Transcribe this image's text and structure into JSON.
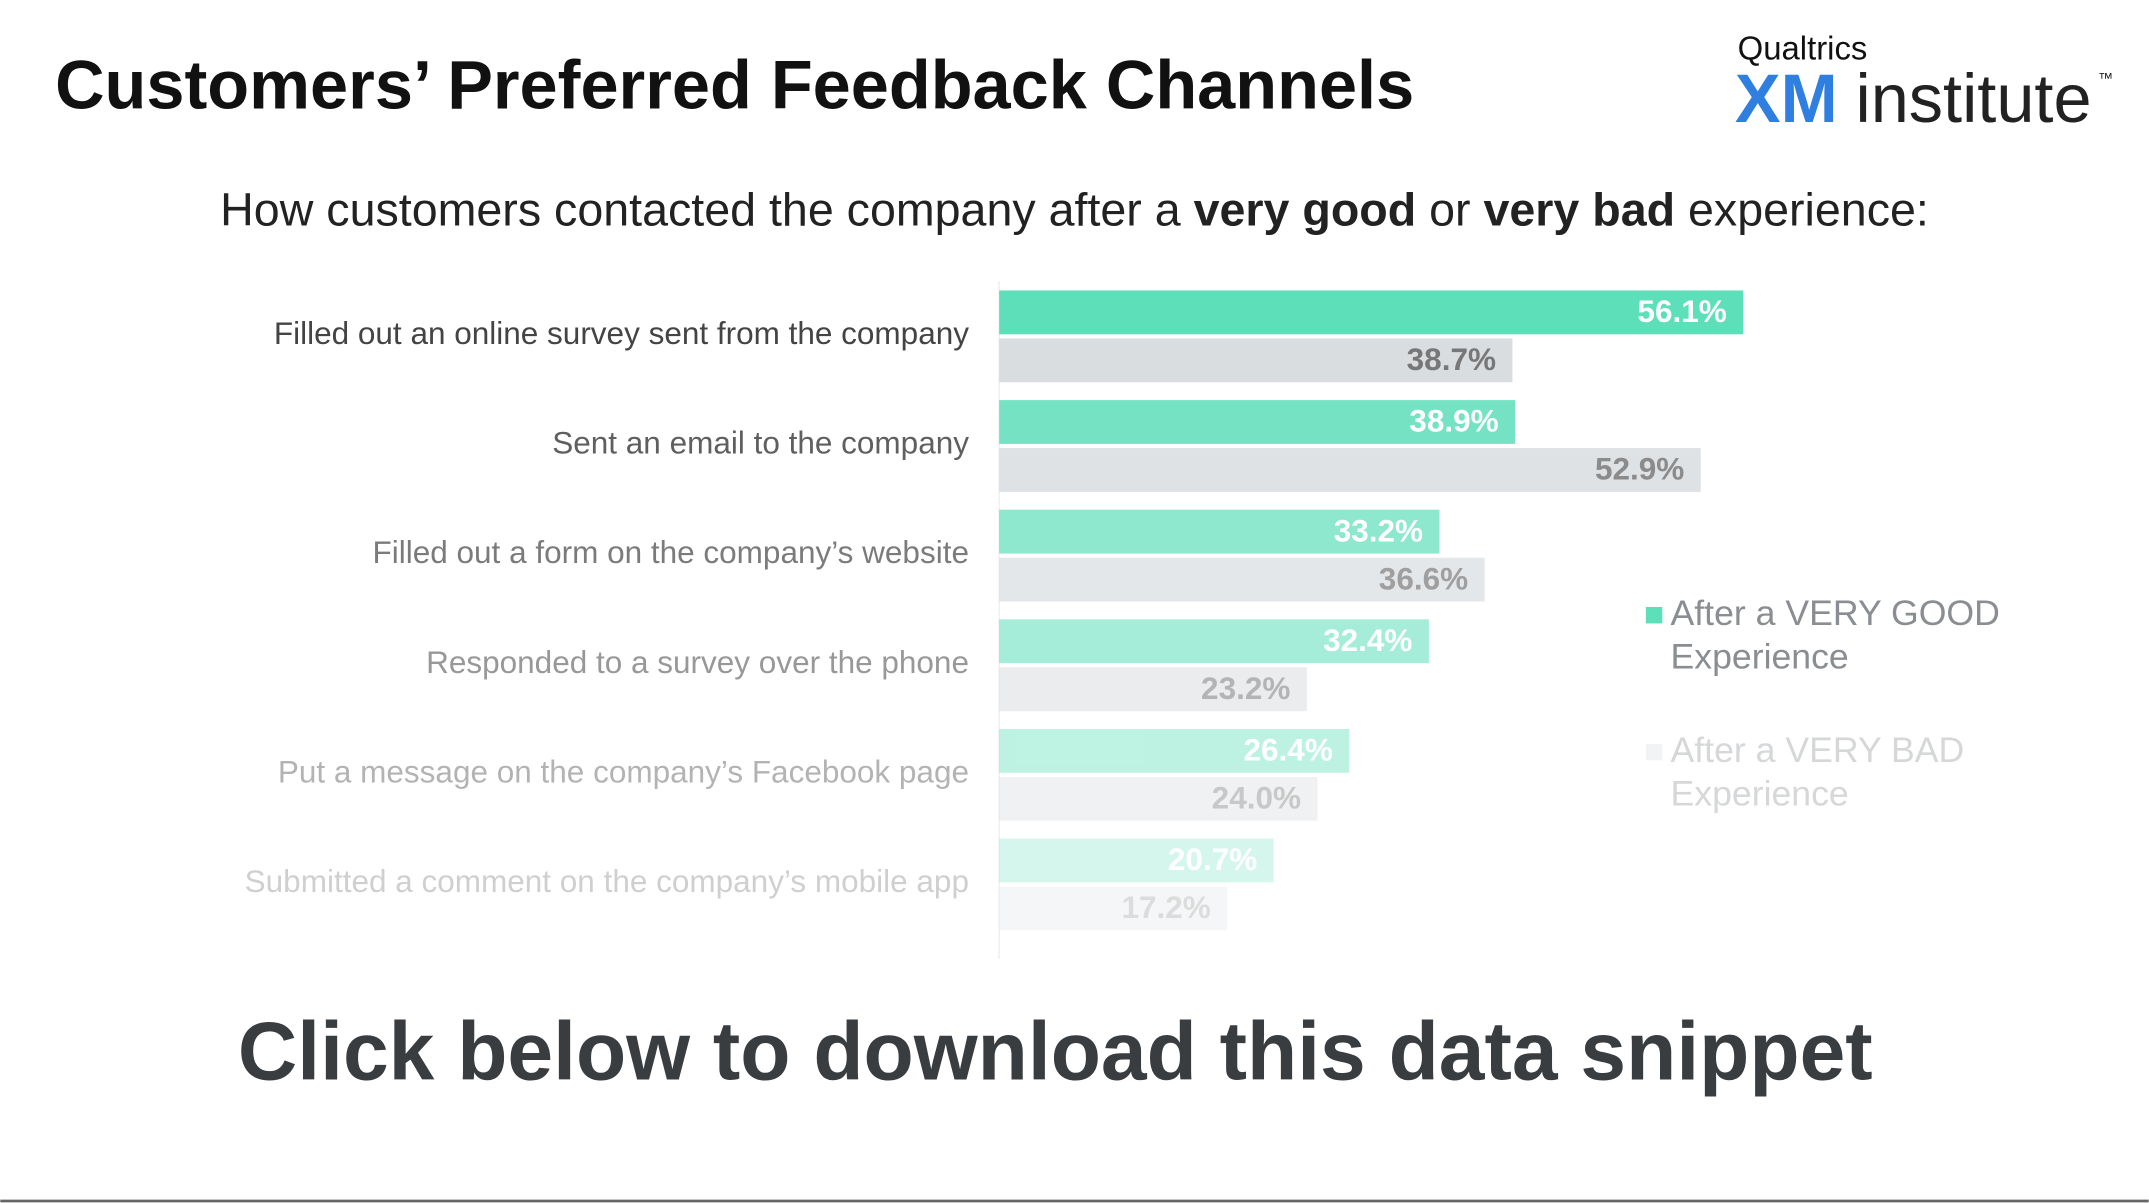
{
  "header": {
    "title": "Customers’ Preferred Feedback Channels",
    "logo": {
      "company": "Qualtrics",
      "mark": "XM",
      "word": "institute",
      "trademark": "™"
    }
  },
  "chart_data": {
    "type": "bar",
    "orientation": "horizontal",
    "subtitle": [
      "How customers contacted the company after a ",
      "very good",
      " or ",
      "very bad",
      " experience:"
    ],
    "categories": [
      "Filled out an online survey sent from the company",
      "Sent an email to the company",
      "Filled out a form on the company’s website",
      "Responded to a survey over the phone",
      "Put a message on the company’s Facebook page",
      "Submitted a comment on the company’s mobile app"
    ],
    "series": [
      {
        "name": "After a VERY GOOD Experience",
        "color": "#5ddfb9",
        "values": [
          56.1,
          38.9,
          33.2,
          32.4,
          26.4,
          20.7
        ],
        "value_labels": [
          "56.1%",
          "38.9%",
          "33.2%",
          "32.4%",
          "26.4%",
          "20.7%"
        ]
      },
      {
        "name": "After a VERY BAD Experience",
        "color": "#d9dde0",
        "values": [
          38.7,
          52.9,
          36.6,
          23.2,
          24.0,
          17.2
        ],
        "value_labels": [
          "38.7%",
          "52.9%",
          "36.6%",
          "23.2%",
          "24.0%",
          "17.2%"
        ]
      }
    ],
    "legend": "right"
  },
  "footer": {
    "cta": "Click below to download this data snippet"
  }
}
